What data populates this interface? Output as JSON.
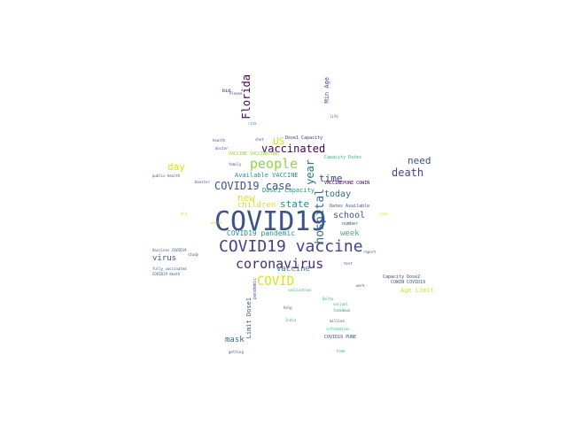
{
  "palette": {
    "navy": "#3b528b",
    "dark-blue": "#414487",
    "purple": "#472d7b",
    "deep-purple": "#440154",
    "teal": "#21918c",
    "green": "#35b779",
    "lime": "#90d743",
    "yellow": "#d8e219",
    "slate": "#2c728e",
    "gray-blue": "#31688e"
  },
  "words": [
    {
      "text": "COVID19",
      "color": "#3b528b"
    },
    {
      "text": "COVID19 vaccine",
      "color": "#414487"
    },
    {
      "text": "coronavirus",
      "color": "#472d7b"
    },
    {
      "text": "COVID",
      "color": "#d8e219"
    },
    {
      "text": "people",
      "color": "#90d743"
    },
    {
      "text": "vaccinated",
      "color": "#440154"
    },
    {
      "text": "COVID19 case",
      "color": "#3b528b"
    },
    {
      "text": "hospital",
      "color": "#31688e"
    },
    {
      "text": "death",
      "color": "#414487"
    },
    {
      "text": "Florida",
      "color": "#440154"
    },
    {
      "text": "day",
      "color": "#d8e219"
    },
    {
      "text": "new",
      "color": "#d8e219"
    },
    {
      "text": "school",
      "color": "#3b528b"
    },
    {
      "text": "state",
      "color": "#21918c"
    },
    {
      "text": "time",
      "color": "#414487"
    },
    {
      "text": "today",
      "color": "#31688e"
    },
    {
      "text": "need",
      "color": "#3b528b"
    },
    {
      "text": "year",
      "color": "#2c728e"
    },
    {
      "text": "US",
      "color": "#d8e219"
    },
    {
      "text": "children",
      "color": "#d8e219"
    },
    {
      "text": "virus",
      "color": "#3b528b"
    },
    {
      "text": "week",
      "color": "#35b779"
    },
    {
      "text": "vaccine",
      "color": "#21918c"
    },
    {
      "text": "mask",
      "color": "#31688e"
    },
    {
      "text": "COVID19 pandemic",
      "color": "#21918c"
    },
    {
      "text": "Available VACCINE",
      "color": "#21918c"
    },
    {
      "text": "Dose1 Capacity",
      "color": "#21918c"
    },
    {
      "text": "Age Limit",
      "color": "#d8e219"
    },
    {
      "text": "Limit Dose1",
      "color": "#3b528b"
    },
    {
      "text": "Min Age",
      "color": "#3b528b"
    },
    {
      "text": "Dose1 Capacity",
      "color": "#472d7b"
    },
    {
      "text": "VACCINE VACCINEPUNE",
      "color": "#90d743"
    },
    {
      "text": "Capacity Dates",
      "color": "#35b779"
    },
    {
      "text": "VACCINEPUNE COWIN",
      "color": "#440154"
    },
    {
      "text": "Dates Available",
      "color": "#3b528b"
    },
    {
      "text": "COWIN COVID19",
      "color": "#3b528b"
    },
    {
      "text": "Capacity Dose2",
      "color": "#414487"
    },
    {
      "text": "COVID19 PUNE",
      "color": "#3b528b"
    },
    {
      "text": "fully vaccinated",
      "color": "#3b528b"
    },
    {
      "text": "Vaccines COVID19",
      "color": "#3b528b"
    },
    {
      "text": "COVID19 death",
      "color": "#3b528b"
    },
    {
      "text": "public health",
      "color": "#3b528b"
    },
    {
      "text": "number",
      "color": "#3b528b"
    },
    {
      "text": "pandemic",
      "color": "#3b528b"
    },
    {
      "text": "study",
      "color": "#414487"
    },
    {
      "text": "Please",
      "color": "#414487"
    },
    {
      "text": "bid",
      "color": "#440154"
    },
    {
      "text": "case",
      "color": "#d8e219"
    },
    {
      "text": "vaccination",
      "color": "#35b779"
    },
    {
      "text": "getting",
      "color": "#3b528b"
    },
    {
      "text": "million",
      "color": "#3b528b"
    },
    {
      "text": "information",
      "color": "#35b779"
    },
    {
      "text": "lockdown",
      "color": "#21918c"
    },
    {
      "text": "die",
      "color": "#d8e219"
    },
    {
      "text": "Delta",
      "color": "#35b779"
    },
    {
      "text": "variant",
      "color": "#35b779"
    },
    {
      "text": "help",
      "color": "#3b528b"
    },
    {
      "text": "test",
      "color": "#3b528b"
    },
    {
      "text": "India",
      "color": "#35b779"
    },
    {
      "text": "report",
      "color": "#3b528b"
    },
    {
      "text": "home",
      "color": "#35b779"
    },
    {
      "text": "work",
      "color": "#3b528b"
    },
    {
      "text": "life",
      "color": "#3b528b"
    },
    {
      "text": "risk",
      "color": "#21918c"
    },
    {
      "text": "world",
      "color": "#d8e219"
    },
    {
      "text": "family",
      "color": "#3b528b"
    },
    {
      "text": "shot",
      "color": "#3b528b"
    },
    {
      "text": "booster",
      "color": "#3b528b"
    },
    {
      "text": "doctor",
      "color": "#3b528b"
    },
    {
      "text": "health",
      "color": "#3b528b"
    }
  ]
}
